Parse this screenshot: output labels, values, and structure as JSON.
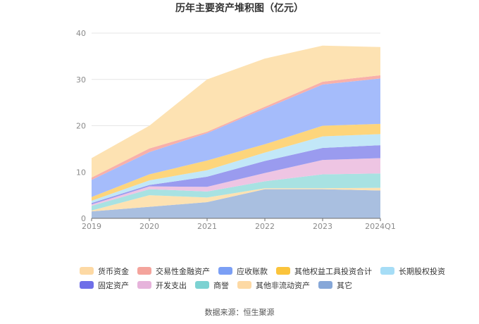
{
  "chart_data": {
    "type": "area",
    "stacked": true,
    "title": "历年主要资产堆积图（亿元）",
    "source": "数据来源：恒生聚源",
    "x": [
      "2019",
      "2020",
      "2021",
      "2022",
      "2023",
      "2024Q1"
    ],
    "ylim": [
      0,
      40
    ],
    "yticks": [
      0,
      10,
      20,
      30,
      40
    ],
    "grid": true,
    "legend_position": "bottom",
    "series": [
      {
        "name": "其它",
        "color": "#a9bfe0",
        "values": [
          1.5,
          2.5,
          3.5,
          6.3,
          6.3,
          6.0
        ]
      },
      {
        "name": "其他非流动资产",
        "color": "#fde2b2",
        "values": [
          0.2,
          2.5,
          1.0,
          0.2,
          0.2,
          0.6
        ]
      },
      {
        "name": "商誉",
        "color": "#a8e2e2",
        "values": [
          1.0,
          1.3,
          1.3,
          1.5,
          3.0,
          3.1
        ]
      },
      {
        "name": "开发支出",
        "color": "#eec5e3",
        "values": [
          0.3,
          0.6,
          1.0,
          1.8,
          3.1,
          3.3
        ]
      },
      {
        "name": "固定资产",
        "color": "#9a9bef",
        "values": [
          0.3,
          0.3,
          2.2,
          2.6,
          2.6,
          2.8
        ]
      },
      {
        "name": "长期股权投资",
        "color": "#c2e7f8",
        "values": [
          0.5,
          1.0,
          1.4,
          1.8,
          2.5,
          2.4
        ]
      },
      {
        "name": "其他权益工具投资合计",
        "color": "#fdd57c",
        "values": [
          0.8,
          1.3,
          2.1,
          1.8,
          2.3,
          2.2
        ]
      },
      {
        "name": "应收账款",
        "color": "#a5bcfb",
        "values": [
          3.7,
          4.8,
          5.9,
          7.7,
          8.9,
          9.8
        ]
      },
      {
        "name": "交易性金融资产",
        "color": "#f8b0aa",
        "values": [
          0.5,
          0.8,
          0.3,
          0.4,
          0.6,
          0.7
        ]
      },
      {
        "name": "货币资金",
        "color": "#fde2b2",
        "values": [
          4.2,
          4.9,
          11.3,
          10.4,
          7.8,
          6.1
        ]
      }
    ],
    "legend": [
      {
        "name": "货币资金",
        "color": "#fdd9a4"
      },
      {
        "name": "交易性金融资产",
        "color": "#f4a49c"
      },
      {
        "name": "应收账款",
        "color": "#7b9ff5"
      },
      {
        "name": "其他权益工具投资合计",
        "color": "#fbc43c"
      },
      {
        "name": "长期股权投资",
        "color": "#a6ddf6"
      },
      {
        "name": "固定资产",
        "color": "#6f6fe8"
      },
      {
        "name": "开发支出",
        "color": "#e6b3db"
      },
      {
        "name": "商誉",
        "color": "#7cd2d2"
      },
      {
        "name": "其他非流动资产",
        "color": "#fdd9a4"
      },
      {
        "name": "其它",
        "color": "#86a7d8"
      }
    ]
  }
}
